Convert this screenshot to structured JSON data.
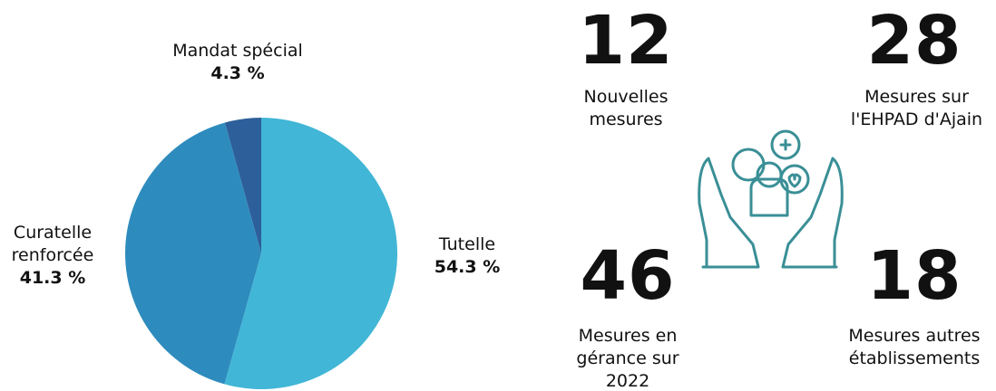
{
  "chart_data": {
    "type": "pie",
    "categories": [
      "Tutelle",
      "Curatelle renforcée",
      "Mandat spécial"
    ],
    "values": [
      54.3,
      41.3,
      4.3
    ],
    "value_labels": [
      "54.3 %",
      "41.3 %",
      "4.3 %"
    ],
    "colors": [
      "#41b6d6",
      "#2e8bbd",
      "#2d5f9a"
    ]
  },
  "stats": [
    {
      "value": 12,
      "label": "Nouvelles mesures"
    },
    {
      "value": 28,
      "label": "Mesures sur l'EHPAD d'Ajain"
    },
    {
      "value": 46,
      "label": "Mesures en gérance sur 2022"
    },
    {
      "value": 18,
      "label": "Mesures autres établissements"
    }
  ]
}
